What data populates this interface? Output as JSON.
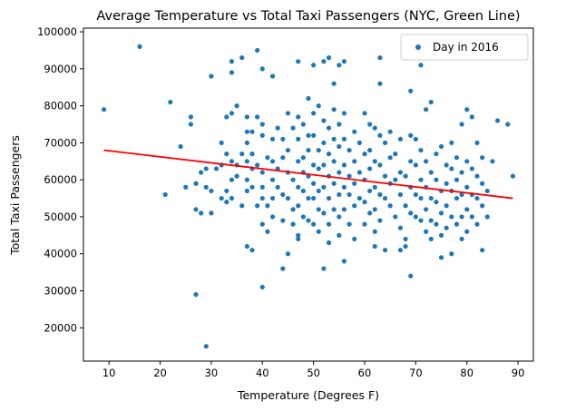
{
  "chart_data": {
    "type": "scatter",
    "title": "Average Temperature vs Total Taxi Passengers (NYC, Green Line)",
    "xlabel": "Temperature (Degrees F)",
    "ylabel": "Total Taxi Passengers",
    "xlim": [
      5,
      93
    ],
    "ylim": [
      11000,
      101000
    ],
    "xticks": [
      10,
      20,
      30,
      40,
      50,
      60,
      70,
      80,
      90
    ],
    "yticks": [
      20000,
      30000,
      40000,
      50000,
      60000,
      70000,
      80000,
      90000,
      100000
    ],
    "grid": false,
    "legend_position": "top-right",
    "point_color": "#1f77b4",
    "fit_color": "#ff0000",
    "series": [
      {
        "name": "Day in 2016",
        "points": [
          [
            9,
            79000
          ],
          [
            16,
            96000
          ],
          [
            22,
            81000
          ],
          [
            21,
            56000
          ],
          [
            24,
            69000
          ],
          [
            25,
            58000
          ],
          [
            26,
            77000
          ],
          [
            26,
            75000
          ],
          [
            27,
            59000
          ],
          [
            27,
            52000
          ],
          [
            27,
            29000
          ],
          [
            28,
            51000
          ],
          [
            28,
            62000
          ],
          [
            29,
            63000
          ],
          [
            29,
            58000
          ],
          [
            29,
            15000
          ],
          [
            30,
            88000
          ],
          [
            30,
            57000
          ],
          [
            30,
            51000
          ],
          [
            31,
            63000
          ],
          [
            32,
            64000
          ],
          [
            32,
            55000
          ],
          [
            32,
            70000
          ],
          [
            33,
            67000
          ],
          [
            33,
            77000
          ],
          [
            33,
            57000
          ],
          [
            33,
            54000
          ],
          [
            34,
            92000
          ],
          [
            34,
            89000
          ],
          [
            34,
            78000
          ],
          [
            34,
            65000
          ],
          [
            34,
            60000
          ],
          [
            34,
            55000
          ],
          [
            35,
            80000
          ],
          [
            35,
            64000
          ],
          [
            35,
            61000
          ],
          [
            36,
            93000
          ],
          [
            36,
            67000
          ],
          [
            36,
            53000
          ],
          [
            37,
            77000
          ],
          [
            37,
            73000
          ],
          [
            37,
            70000
          ],
          [
            37,
            65000
          ],
          [
            37,
            60000
          ],
          [
            37,
            57000
          ],
          [
            37,
            42000
          ],
          [
            38,
            73000
          ],
          [
            38,
            67000
          ],
          [
            38,
            63000
          ],
          [
            38,
            58000
          ],
          [
            38,
            41000
          ],
          [
            39,
            95000
          ],
          [
            39,
            77000
          ],
          [
            39,
            64000
          ],
          [
            39,
            53000
          ],
          [
            40,
            90000
          ],
          [
            40,
            75000
          ],
          [
            40,
            72000
          ],
          [
            40,
            62000
          ],
          [
            40,
            58000
          ],
          [
            40,
            55000
          ],
          [
            40,
            48000
          ],
          [
            40,
            31000
          ],
          [
            41,
            66000
          ],
          [
            41,
            53000
          ],
          [
            41,
            46000
          ],
          [
            42,
            88000
          ],
          [
            42,
            71000
          ],
          [
            42,
            65000
          ],
          [
            42,
            60000
          ],
          [
            42,
            55000
          ],
          [
            42,
            50000
          ],
          [
            43,
            74000
          ],
          [
            43,
            63000
          ],
          [
            43,
            58000
          ],
          [
            44,
            71000
          ],
          [
            44,
            66000
          ],
          [
            44,
            56000
          ],
          [
            44,
            49000
          ],
          [
            44,
            36000
          ],
          [
            45,
            78000
          ],
          [
            45,
            68000
          ],
          [
            45,
            62000
          ],
          [
            45,
            55000
          ],
          [
            45,
            40000
          ],
          [
            46,
            74000
          ],
          [
            46,
            60000
          ],
          [
            46,
            52000
          ],
          [
            46,
            48000
          ],
          [
            47,
            92000
          ],
          [
            47,
            77000
          ],
          [
            47,
            71000
          ],
          [
            47,
            65000
          ],
          [
            47,
            58000
          ],
          [
            47,
            53000
          ],
          [
            47,
            45000
          ],
          [
            47,
            44000
          ],
          [
            48,
            75000
          ],
          [
            48,
            66000
          ],
          [
            48,
            62000
          ],
          [
            48,
            57000
          ],
          [
            48,
            50000
          ],
          [
            49,
            82000
          ],
          [
            49,
            72000
          ],
          [
            49,
            68000
          ],
          [
            49,
            61000
          ],
          [
            49,
            55000
          ],
          [
            49,
            49000
          ],
          [
            50,
            91000
          ],
          [
            50,
            78000
          ],
          [
            50,
            72000
          ],
          [
            50,
            64000
          ],
          [
            50,
            59000
          ],
          [
            50,
            55000
          ],
          [
            50,
            48000
          ],
          [
            51,
            80000
          ],
          [
            51,
            68000
          ],
          [
            51,
            63000
          ],
          [
            51,
            57000
          ],
          [
            51,
            52000
          ],
          [
            51,
            46000
          ],
          [
            52,
            92000
          ],
          [
            52,
            76000
          ],
          [
            52,
            70000
          ],
          [
            52,
            64000
          ],
          [
            52,
            58000
          ],
          [
            52,
            51000
          ],
          [
            52,
            36000
          ],
          [
            53,
            93000
          ],
          [
            53,
            74000
          ],
          [
            53,
            67000
          ],
          [
            53,
            61000
          ],
          [
            53,
            55000
          ],
          [
            53,
            48000
          ],
          [
            53,
            43000
          ],
          [
            54,
            86000
          ],
          [
            54,
            79000
          ],
          [
            54,
            71000
          ],
          [
            54,
            65000
          ],
          [
            54,
            59000
          ],
          [
            54,
            52000
          ],
          [
            55,
            91000
          ],
          [
            55,
            75000
          ],
          [
            55,
            69000
          ],
          [
            55,
            62000
          ],
          [
            55,
            56000
          ],
          [
            55,
            50000
          ],
          [
            55,
            45000
          ],
          [
            56,
            92000
          ],
          [
            56,
            78000
          ],
          [
            56,
            71000
          ],
          [
            56,
            64000
          ],
          [
            56,
            58000
          ],
          [
            56,
            52000
          ],
          [
            56,
            38000
          ],
          [
            57,
            68000
          ],
          [
            57,
            61000
          ],
          [
            57,
            56000
          ],
          [
            57,
            48000
          ],
          [
            58,
            73000
          ],
          [
            58,
            65000
          ],
          [
            58,
            59000
          ],
          [
            58,
            53000
          ],
          [
            58,
            44000
          ],
          [
            59,
            70000
          ],
          [
            59,
            62000
          ],
          [
            59,
            55000
          ],
          [
            60,
            78000
          ],
          [
            60,
            67000
          ],
          [
            60,
            60000
          ],
          [
            60,
            54000
          ],
          [
            60,
            48000
          ],
          [
            61,
            75000
          ],
          [
            61,
            68000
          ],
          [
            61,
            63000
          ],
          [
            61,
            57000
          ],
          [
            61,
            51000
          ],
          [
            62,
            74000
          ],
          [
            62,
            65000
          ],
          [
            62,
            58000
          ],
          [
            62,
            52000
          ],
          [
            62,
            46000
          ],
          [
            62,
            42000
          ],
          [
            63,
            93000
          ],
          [
            63,
            86000
          ],
          [
            63,
            72000
          ],
          [
            63,
            64000
          ],
          [
            63,
            56000
          ],
          [
            63,
            49000
          ],
          [
            64,
            70000
          ],
          [
            64,
            61000
          ],
          [
            64,
            55000
          ],
          [
            64,
            41000
          ],
          [
            65,
            73000
          ],
          [
            65,
            66000
          ],
          [
            65,
            59000
          ],
          [
            65,
            53000
          ],
          [
            66,
            67000
          ],
          [
            66,
            60000
          ],
          [
            66,
            50000
          ],
          [
            67,
            71000
          ],
          [
            67,
            62000
          ],
          [
            67,
            56000
          ],
          [
            67,
            47000
          ],
          [
            67,
            41000
          ],
          [
            68,
            61000
          ],
          [
            68,
            53000
          ],
          [
            68,
            44000
          ],
          [
            68,
            42000
          ],
          [
            69,
            84000
          ],
          [
            69,
            72000
          ],
          [
            69,
            65000
          ],
          [
            69,
            58000
          ],
          [
            69,
            51000
          ],
          [
            69,
            34000
          ],
          [
            70,
            71000
          ],
          [
            70,
            64000
          ],
          [
            70,
            56000
          ],
          [
            70,
            50000
          ],
          [
            71,
            91000
          ],
          [
            71,
            68000
          ],
          [
            71,
            60000
          ],
          [
            71,
            55000
          ],
          [
            71,
            49000
          ],
          [
            72,
            79000
          ],
          [
            72,
            65000
          ],
          [
            72,
            58000
          ],
          [
            72,
            52000
          ],
          [
            72,
            46000
          ],
          [
            73,
            81000
          ],
          [
            73,
            62000
          ],
          [
            73,
            55000
          ],
          [
            73,
            49000
          ],
          [
            73,
            44000
          ],
          [
            74,
            67000
          ],
          [
            74,
            60000
          ],
          [
            74,
            54000
          ],
          [
            74,
            48000
          ],
          [
            75,
            69000
          ],
          [
            75,
            57000
          ],
          [
            75,
            51000
          ],
          [
            75,
            45000
          ],
          [
            75,
            39000
          ],
          [
            76,
            64000
          ],
          [
            76,
            59000
          ],
          [
            76,
            53000
          ],
          [
            76,
            47000
          ],
          [
            77,
            70000
          ],
          [
            77,
            63000
          ],
          [
            77,
            57000
          ],
          [
            77,
            50000
          ],
          [
            77,
            40000
          ],
          [
            78,
            66000
          ],
          [
            78,
            60000
          ],
          [
            78,
            55000
          ],
          [
            78,
            48000
          ],
          [
            79,
            75000
          ],
          [
            79,
            62000
          ],
          [
            79,
            56000
          ],
          [
            79,
            50000
          ],
          [
            79,
            44000
          ],
          [
            80,
            79000
          ],
          [
            80,
            65000
          ],
          [
            80,
            58000
          ],
          [
            80,
            52000
          ],
          [
            80,
            46000
          ],
          [
            81,
            77000
          ],
          [
            81,
            63000
          ],
          [
            81,
            56000
          ],
          [
            81,
            50000
          ],
          [
            82,
            70000
          ],
          [
            82,
            61000
          ],
          [
            82,
            55000
          ],
          [
            82,
            48000
          ],
          [
            83,
            66000
          ],
          [
            83,
            59000
          ],
          [
            83,
            53000
          ],
          [
            83,
            41000
          ],
          [
            84,
            57000
          ],
          [
            84,
            50000
          ],
          [
            85,
            65000
          ],
          [
            86,
            76000
          ],
          [
            88,
            75000
          ],
          [
            89,
            61000
          ]
        ]
      }
    ],
    "fit_line": {
      "x": [
        9,
        89
      ],
      "y": [
        68000,
        55000
      ]
    }
  }
}
